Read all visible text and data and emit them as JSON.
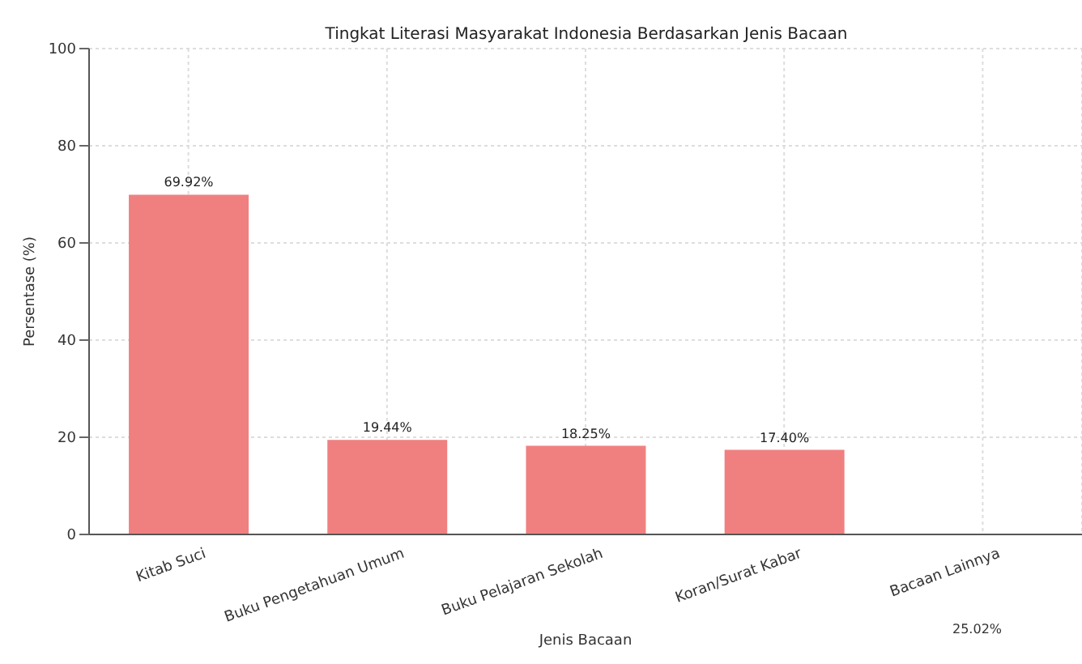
{
  "chart_data": {
    "type": "bar",
    "title": "Tingkat Literasi Masyarakat Indonesia Berdasarkan Jenis Bacaan",
    "xlabel": "Jenis Bacaan",
    "ylabel": "Persentase (%)",
    "categories": [
      "Kitab Suci",
      "Buku Pengetahuan Umum",
      "Buku Pelajaran Sekolah",
      "Koran/Surat Kabar",
      "Bacaan Lainnya"
    ],
    "values": [
      69.92,
      19.44,
      18.25,
      17.4,
      null
    ],
    "value_labels": [
      "69.92%",
      "19.44%",
      "18.25%",
      "17.40%",
      null
    ],
    "color": "#f08080",
    "ylim": [
      0,
      100
    ],
    "yticks": [
      0,
      20,
      40,
      60,
      80,
      100
    ],
    "grid": true,
    "annotations": [
      "25.02%"
    ]
  }
}
